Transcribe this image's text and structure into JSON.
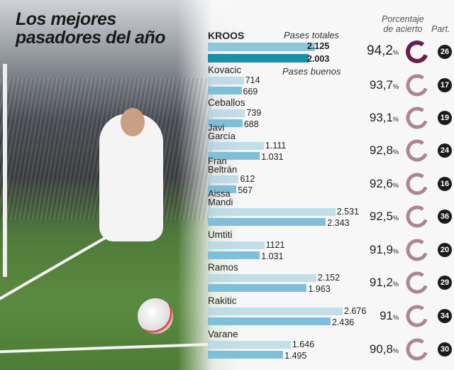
{
  "title_line1": "Los mejores",
  "title_line2": "pasadores del año",
  "headers": {
    "total": "Pases totales",
    "good": "Pases buenos",
    "pct_line1": "Porcentaje",
    "pct_line2": "de acierto",
    "matches": "Part."
  },
  "colors": {
    "total_bar": "#a9d3e3",
    "good_bar": "#7fc0d8",
    "highlight_total": "#8ec6dc",
    "highlight_good": "#1a8fa8",
    "ring_highlight": "#6a1e48",
    "ring": "#a88696"
  },
  "chart_data": {
    "type": "bar",
    "title": "Los mejores pasadores del año",
    "orientation": "horizontal",
    "categories": [
      "KROOS",
      "Kovacic",
      "Ceballos",
      "Javi García",
      "Fran Beltrán",
      "Aissa Mandi",
      "Umtiti",
      "Ramos",
      "Rakitic",
      "Varane"
    ],
    "series": [
      {
        "name": "Pases totales",
        "values": [
          2125,
          714,
          739,
          1111,
          612,
          2531,
          1121,
          2152,
          2676,
          1646
        ],
        "labels": [
          "2.125",
          "714",
          "739",
          "1.111",
          "612",
          "2.531",
          "1121",
          "2.152",
          "2.676",
          "1.646"
        ]
      },
      {
        "name": "Pases buenos",
        "values": [
          2003,
          669,
          688,
          1031,
          567,
          2343,
          1031,
          1963,
          2436,
          1495
        ],
        "labels": [
          "2.003",
          "669",
          "688",
          "1.031",
          "567",
          "2.343",
          "1.031",
          "1.963",
          "2.436",
          "1.495"
        ]
      }
    ],
    "percentages": [
      94.2,
      93.7,
      93.1,
      92.8,
      92.6,
      92.5,
      91.9,
      91.2,
      91,
      90.8
    ],
    "percentage_labels": [
      "94,2",
      "93,7",
      "93,1",
      "92,8",
      "92,6",
      "92,5",
      "91,9",
      "91,2",
      "91",
      "90,8"
    ],
    "percent_sign": "%",
    "matches": [
      "26",
      "17",
      "19",
      "24",
      "16",
      "36",
      "20",
      "29",
      "34",
      "30"
    ]
  }
}
